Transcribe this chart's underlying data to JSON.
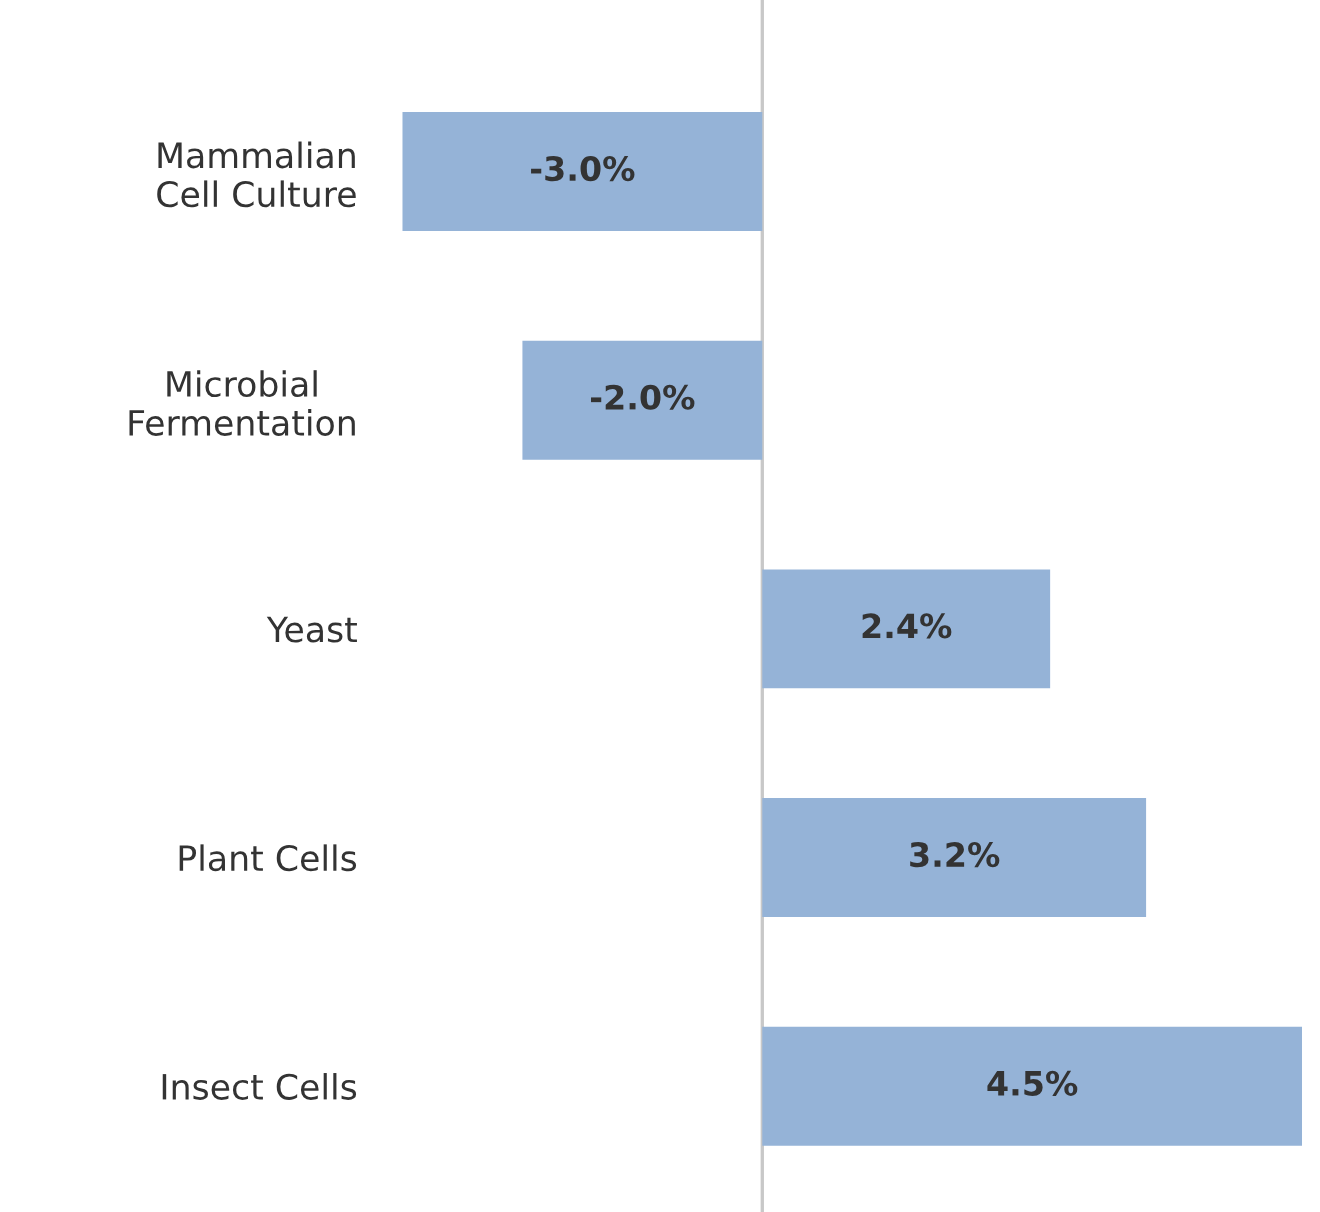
{
  "chart_data": {
    "type": "bar",
    "orientation": "horizontal",
    "categories": [
      "Mammalian\nCell Culture",
      "Microbial\nFermentation",
      "Yeast",
      "Plant Cells",
      "Insect Cells"
    ],
    "values": [
      -3.0,
      -2.0,
      2.4,
      3.2,
      4.5
    ],
    "value_labels": [
      "-3.0%",
      "-2.0%",
      "2.4%",
      "3.2%",
      "4.5%"
    ],
    "color": "#95b3d7",
    "grid": false,
    "legend": false
  }
}
